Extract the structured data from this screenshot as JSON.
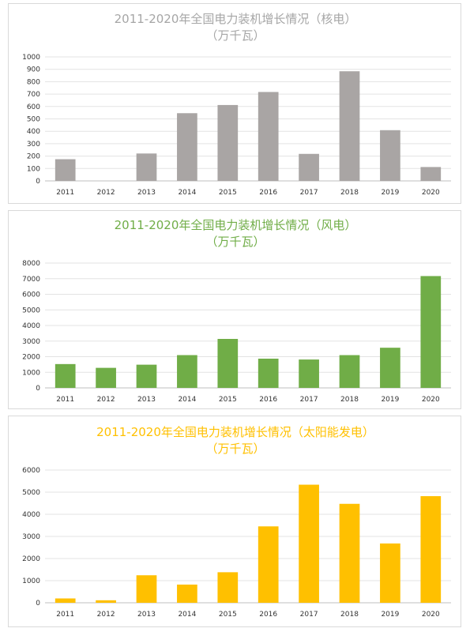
{
  "charts": [
    {
      "type": "bar",
      "title_line1": "2011-2020年全国电力装机增长情况（核电）",
      "title_line2": "（万千瓦）",
      "title_color": "#a6a6a6",
      "bar_color": "#a9a5a4",
      "categories": [
        "2011",
        "2012",
        "2013",
        "2014",
        "2015",
        "2016",
        "2017",
        "2018",
        "2019",
        "2020"
      ],
      "values": [
        175,
        0,
        221,
        546,
        612,
        717,
        218,
        884,
        409,
        112
      ],
      "yticks": [
        0,
        100,
        200,
        300,
        400,
        500,
        600,
        700,
        800,
        900,
        1000
      ],
      "ylim": [
        0,
        1000
      ],
      "grid": true
    },
    {
      "type": "bar",
      "title_line1": "2011-2020年全国电力装机增长情况（风电）",
      "title_line2": "（万千瓦）",
      "title_color": "#70ad47",
      "bar_color": "#70ad47",
      "categories": [
        "2011",
        "2012",
        "2013",
        "2014",
        "2015",
        "2016",
        "2017",
        "2018",
        "2019",
        "2020"
      ],
      "values": [
        1527,
        1285,
        1487,
        2101,
        3139,
        1873,
        1819,
        2100,
        2574,
        7167
      ],
      "yticks": [
        0,
        1000,
        2000,
        3000,
        4000,
        5000,
        6000,
        7000,
        8000
      ],
      "ylim": [
        0,
        8000
      ],
      "grid": true
    },
    {
      "type": "bar",
      "title_line1": "2011-2020年全国电力装机增长情况（太阳能发电）",
      "title_line2": "（万千瓦）",
      "title_color": "#ffc000",
      "bar_color": "#ffc000",
      "categories": [
        "2011",
        "2012",
        "2013",
        "2014",
        "2015",
        "2016",
        "2017",
        "2018",
        "2019",
        "2020"
      ],
      "values": [
        196,
        113,
        1243,
        822,
        1380,
        3454,
        5338,
        4473,
        2681,
        4820
      ],
      "yticks": [
        0,
        1000,
        2000,
        3000,
        4000,
        5000,
        6000
      ],
      "ylim": [
        0,
        6000
      ],
      "grid": true
    }
  ],
  "chart_data": [
    {
      "type": "bar",
      "title": "2011-2020年全国电力装机增长情况（核电）（万千瓦）",
      "categories": [
        "2011",
        "2012",
        "2013",
        "2014",
        "2015",
        "2016",
        "2017",
        "2018",
        "2019",
        "2020"
      ],
      "values": [
        175,
        0,
        221,
        546,
        612,
        717,
        218,
        884,
        409,
        112
      ],
      "ylim": [
        0,
        1000
      ]
    },
    {
      "type": "bar",
      "title": "2011-2020年全国电力装机增长情况（风电）（万千瓦）",
      "categories": [
        "2011",
        "2012",
        "2013",
        "2014",
        "2015",
        "2016",
        "2017",
        "2018",
        "2019",
        "2020"
      ],
      "values": [
        1527,
        1285,
        1487,
        2101,
        3139,
        1873,
        1819,
        2100,
        2574,
        7167
      ],
      "ylim": [
        0,
        8000
      ]
    },
    {
      "type": "bar",
      "title": "2011-2020年全国电力装机增长情况（太阳能发电）（万千瓦）",
      "categories": [
        "2011",
        "2012",
        "2013",
        "2014",
        "2015",
        "2016",
        "2017",
        "2018",
        "2019",
        "2020"
      ],
      "values": [
        196,
        113,
        1243,
        822,
        1380,
        3454,
        5338,
        4473,
        2681,
        4820
      ],
      "ylim": [
        0,
        6000
      ]
    }
  ]
}
